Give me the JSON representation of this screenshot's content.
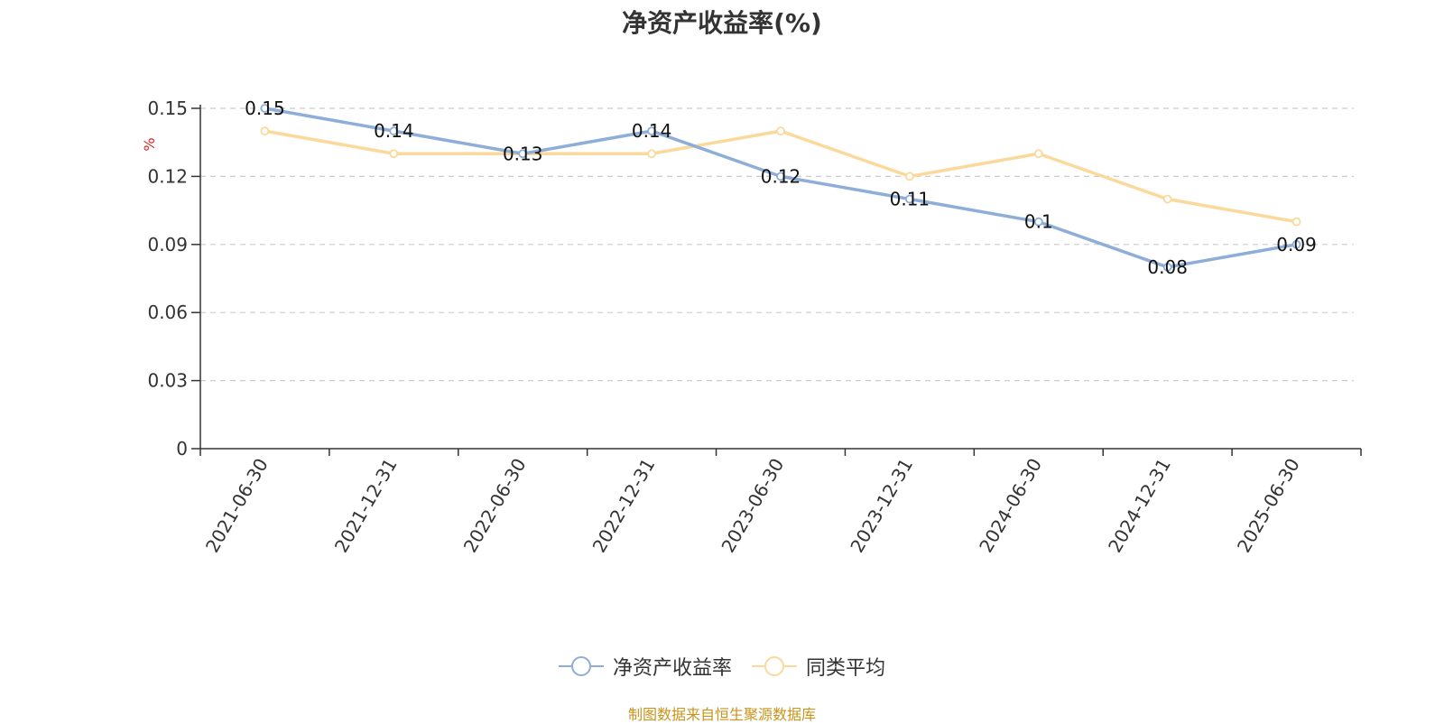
{
  "chart_data": {
    "type": "line",
    "title": "净资产收益率(%)",
    "ylabel": "%",
    "xlabel": "",
    "categories": [
      "2021-06-30",
      "2021-12-31",
      "2022-06-30",
      "2022-12-31",
      "2023-06-30",
      "2023-12-31",
      "2024-06-30",
      "2024-12-31",
      "2025-06-30"
    ],
    "series": [
      {
        "name": "净资产收益率",
        "color": "#8eaed8",
        "values": [
          0.15,
          0.14,
          0.13,
          0.14,
          0.12,
          0.11,
          0.1,
          0.08,
          0.09
        ],
        "labels": [
          "0.15",
          "0.14",
          "0.13",
          "0.14",
          "0.12",
          "0.11",
          "0.1",
          "0.08",
          "0.09"
        ]
      },
      {
        "name": "同类平均",
        "color": "#fad99a",
        "values": [
          0.14,
          0.13,
          0.13,
          0.13,
          0.14,
          0.12,
          0.13,
          0.11,
          0.1
        ]
      }
    ],
    "ylim": [
      0,
      0.15
    ],
    "yticks": [
      "0",
      "0.03",
      "0.06",
      "0.09",
      "0.12",
      "0.15"
    ],
    "grid": true,
    "legend_position": "bottom"
  },
  "source": "制图数据来自恒生聚源数据库"
}
